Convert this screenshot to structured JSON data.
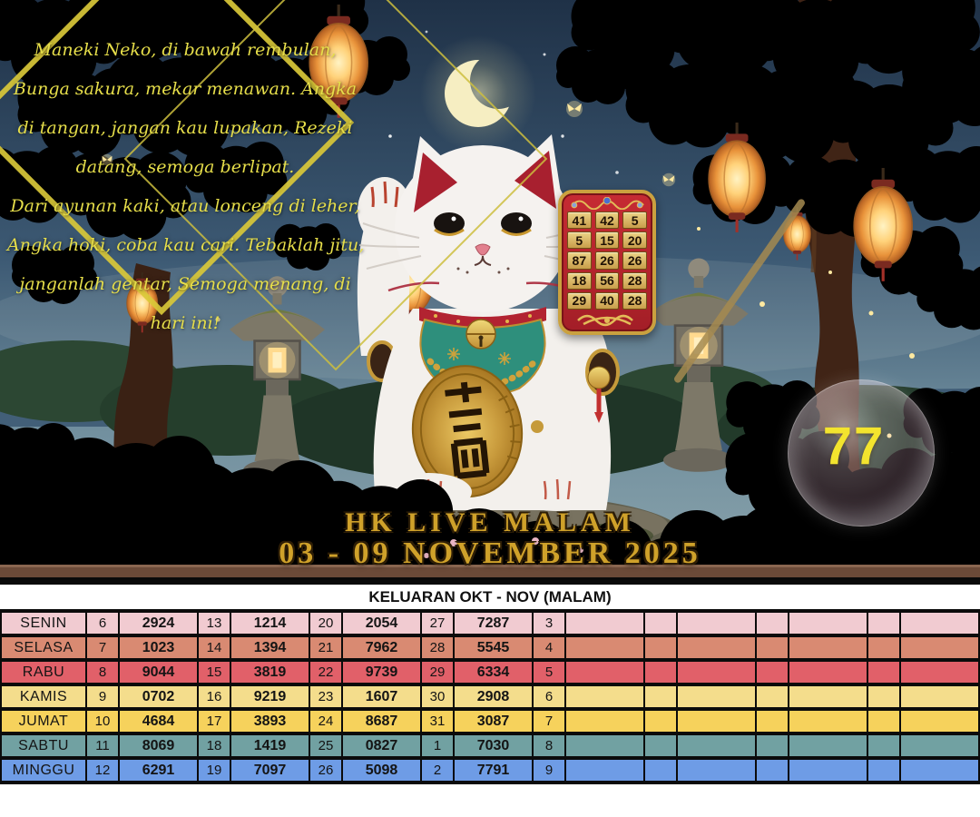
{
  "hero": {
    "poem_lines": [
      "Maneki Neko, di bawah rembulan,",
      "Bunga sakura, mekar menawan. Angka",
      "di tangan, jangan kau lupakan, Rezeki",
      "datang, semoga berlipat.",
      "Dari ayunan kaki, atau lonceng di leher,",
      "Angka hoki, coba kau cari. Tebaklah jitu,",
      "janganlah gentar, Semoga menang, di",
      "hari ini!"
    ],
    "board_numbers": [
      [
        "41",
        "42",
        "5"
      ],
      [
        "5",
        "15",
        "20"
      ],
      [
        "87",
        "26",
        "26"
      ],
      [
        "18",
        "56",
        "28"
      ],
      [
        "29",
        "40",
        "28"
      ]
    ],
    "bubble_number": "77",
    "title_line1": "HK LIVE MALAM",
    "title_line2": "03 - 09 NOVEMBER 2025",
    "colors": {
      "poem_yellow": "#e6de4a",
      "title_gold": "#cfa12a",
      "bubble_number_yellow": "#f3e42e",
      "board_red": "#b5242c",
      "board_gold": "#caa13f"
    }
  },
  "results": {
    "title": "KELUARAN OKT - NOV (MALAM)",
    "rows": [
      {
        "day": "SENIN",
        "color": "#f1cbd1",
        "cells": [
          "6",
          "2924",
          "13",
          "1214",
          "20",
          "2054",
          "27",
          "7287",
          "3",
          "",
          "",
          "",
          "",
          "",
          "",
          ""
        ]
      },
      {
        "day": "SELASA",
        "color": "#d98a72",
        "cells": [
          "7",
          "1023",
          "14",
          "1394",
          "21",
          "7962",
          "28",
          "5545",
          "4",
          "",
          "",
          "",
          "",
          "",
          "",
          ""
        ]
      },
      {
        "day": "RABU",
        "color": "#e16069",
        "cells": [
          "8",
          "9044",
          "15",
          "3819",
          "22",
          "9739",
          "29",
          "6334",
          "5",
          "",
          "",
          "",
          "",
          "",
          "",
          ""
        ]
      },
      {
        "day": "KAMIS",
        "color": "#f4dd8c",
        "cells": [
          "9",
          "0702",
          "16",
          "9219",
          "23",
          "1607",
          "30",
          "2908",
          "6",
          "",
          "",
          "",
          "",
          "",
          "",
          ""
        ]
      },
      {
        "day": "JUMAT",
        "color": "#f6d25c",
        "cells": [
          "10",
          "4684",
          "17",
          "3893",
          "24",
          "8687",
          "31",
          "3087",
          "7",
          "",
          "",
          "",
          "",
          "",
          "",
          ""
        ]
      },
      {
        "day": "SABTU",
        "color": "#71a1a2",
        "cells": [
          "11",
          "8069",
          "18",
          "1419",
          "25",
          "0827",
          "1",
          "7030",
          "8",
          "",
          "",
          "",
          "",
          "",
          "",
          ""
        ]
      },
      {
        "day": "MINGGU",
        "color": "#6e9ce6",
        "cells": [
          "12",
          "6291",
          "19",
          "7097",
          "26",
          "5098",
          "2",
          "7791",
          "9",
          "",
          "",
          "",
          "",
          "",
          "",
          ""
        ]
      }
    ]
  }
}
